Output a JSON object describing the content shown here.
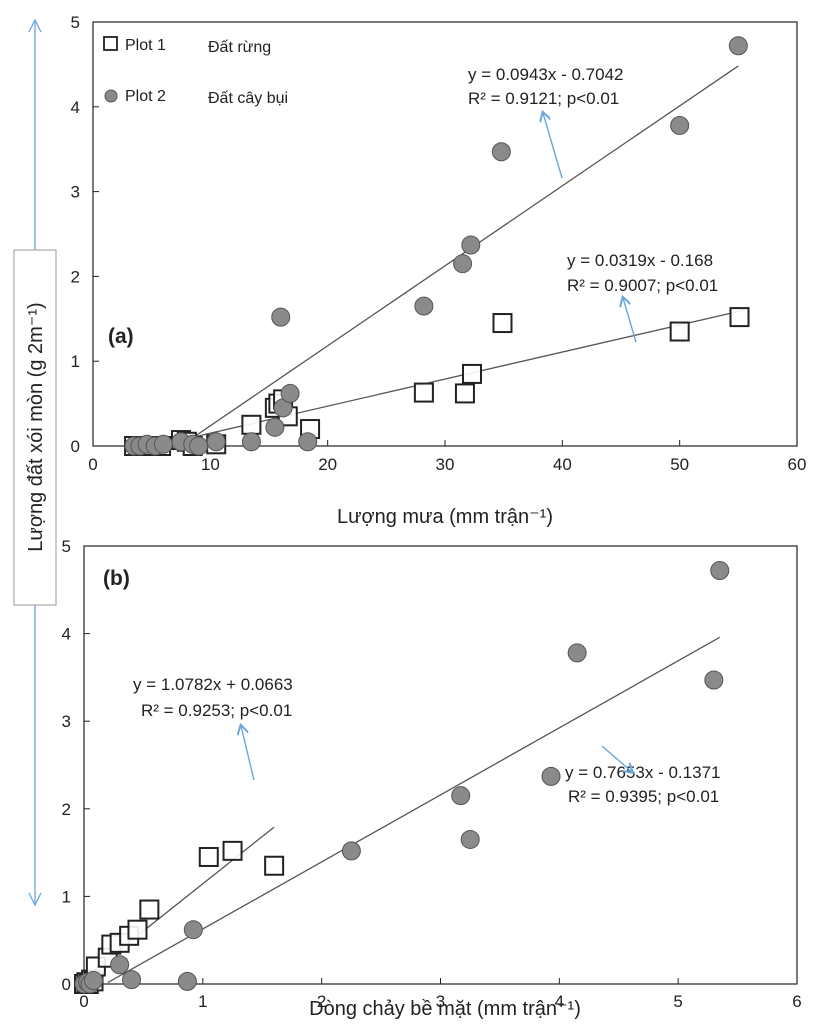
{
  "colors": {
    "axis": "#222222",
    "fit_line": "#555555",
    "plot2_fill": "#8a8a8a",
    "plot2_stroke": "#555555",
    "plot1_fill": "#ffffff",
    "plot1_stroke": "#222222",
    "arrow": "#6aa6dc"
  },
  "ylabel": "Lượng đất xói mòn (g 2m⁻¹)",
  "legend": [
    {
      "series": "Plot 1",
      "label": "Đất rừng",
      "marker": "open-square"
    },
    {
      "series": "Plot 2",
      "label": "Đất cây bụi",
      "marker": "filled-circle"
    }
  ],
  "chart_data": [
    {
      "type": "scatter",
      "panel_label": "(a)",
      "xlabel": "Lượng mưa (mm trận⁻¹)",
      "xlim": [
        0,
        60
      ],
      "ylim": [
        0,
        5
      ],
      "xticks": [
        0,
        10,
        20,
        30,
        40,
        50,
        60
      ],
      "yticks": [
        0,
        1,
        2,
        3,
        4,
        5
      ],
      "grid": false,
      "legend_position": "top-left",
      "series": [
        {
          "name": "Plot 1",
          "marker": "open-square",
          "points": [
            [
              3.5,
              0.0
            ],
            [
              4.0,
              0.0
            ],
            [
              4.5,
              0.0
            ],
            [
              5.0,
              0.0
            ],
            [
              5.8,
              0.0
            ],
            [
              7.5,
              0.07
            ],
            [
              8.0,
              0.05
            ],
            [
              8.5,
              0.0
            ],
            [
              10.5,
              0.02
            ],
            [
              13.5,
              0.25
            ],
            [
              15.5,
              0.45
            ],
            [
              15.8,
              0.5
            ],
            [
              16.2,
              0.55
            ],
            [
              16.6,
              0.35
            ],
            [
              18.5,
              0.2
            ],
            [
              28.2,
              0.63
            ],
            [
              31.7,
              0.62
            ],
            [
              32.3,
              0.85
            ],
            [
              34.9,
              1.45
            ],
            [
              50.0,
              1.35
            ],
            [
              55.1,
              1.52
            ]
          ],
          "fit": {
            "slope": 0.0319,
            "intercept": -0.168,
            "x_range": [
              5.3,
              55.5
            ]
          },
          "equation": "y = 0.0319x - 0.168",
          "r2_text": "R² = 0.9007; p<0.01"
        },
        {
          "name": "Plot 2",
          "marker": "filled-circle",
          "points": [
            [
              3.5,
              0.0
            ],
            [
              4.0,
              0.0
            ],
            [
              4.6,
              0.02
            ],
            [
              5.3,
              0.0
            ],
            [
              6.0,
              0.02
            ],
            [
              7.5,
              0.05
            ],
            [
              8.5,
              0.02
            ],
            [
              9.0,
              0.0
            ],
            [
              10.5,
              0.05
            ],
            [
              13.5,
              0.05
            ],
            [
              15.5,
              0.22
            ],
            [
              16.0,
              1.52
            ],
            [
              16.2,
              0.45
            ],
            [
              16.8,
              0.62
            ],
            [
              18.3,
              0.05
            ],
            [
              28.2,
              1.65
            ],
            [
              31.5,
              2.15
            ],
            [
              32.2,
              2.37
            ],
            [
              34.8,
              3.47
            ],
            [
              50.0,
              3.78
            ],
            [
              55.0,
              4.72
            ]
          ],
          "fit": {
            "slope": 0.0943,
            "intercept": -0.7042,
            "x_range": [
              7.5,
              55.0
            ]
          },
          "equation": "y = 0.0943x - 0.7042",
          "r2_text": "R² = 0.9121; p<0.01"
        }
      ]
    },
    {
      "type": "scatter",
      "panel_label": "(b)",
      "xlabel": "Dòng chảy bề mặt (mm trận⁻¹)",
      "xlim": [
        0,
        6
      ],
      "ylim": [
        0,
        5
      ],
      "xticks": [
        0,
        1,
        2,
        3,
        4,
        5,
        6
      ],
      "yticks": [
        0,
        1,
        2,
        3,
        4,
        5
      ],
      "grid": false,
      "series": [
        {
          "name": "Plot 1",
          "marker": "open-square",
          "points": [
            [
              0.0,
              0.0
            ],
            [
              0.02,
              0.02
            ],
            [
              0.04,
              0.0
            ],
            [
              0.06,
              0.05
            ],
            [
              0.08,
              0.03
            ],
            [
              0.1,
              0.2
            ],
            [
              0.2,
              0.3
            ],
            [
              0.23,
              0.45
            ],
            [
              0.3,
              0.47
            ],
            [
              0.38,
              0.55
            ],
            [
              0.45,
              0.62
            ],
            [
              0.55,
              0.85
            ],
            [
              1.05,
              1.45
            ],
            [
              1.25,
              1.52
            ],
            [
              1.6,
              1.35
            ]
          ],
          "fit": {
            "slope": 1.0782,
            "intercept": 0.0663,
            "x_range": [
              0.0,
              1.6
            ]
          },
          "equation": "y = 1.0782x + 0.0663",
          "r2_text": "R² = 0.9253; p<0.01"
        },
        {
          "name": "Plot 2",
          "marker": "filled-circle",
          "points": [
            [
              0.0,
              0.0
            ],
            [
              0.03,
              0.02
            ],
            [
              0.05,
              0.0
            ],
            [
              0.08,
              0.04
            ],
            [
              0.3,
              0.22
            ],
            [
              0.4,
              0.05
            ],
            [
              0.87,
              0.03
            ],
            [
              0.92,
              0.62
            ],
            [
              2.25,
              1.52
            ],
            [
              3.17,
              2.15
            ],
            [
              3.25,
              1.65
            ],
            [
              3.93,
              2.37
            ],
            [
              4.15,
              3.78
            ],
            [
              5.3,
              3.47
            ],
            [
              5.35,
              4.72
            ]
          ],
          "fit": {
            "slope": 0.7653,
            "intercept": -0.1371,
            "x_range": [
              0.2,
              5.35
            ]
          },
          "equation": "y = 0.7653x - 0.1371",
          "r2_text": "R² = 0.9395; p<0.01"
        }
      ]
    }
  ]
}
